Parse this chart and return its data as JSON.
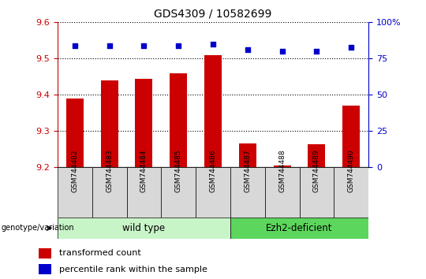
{
  "title": "GDS4309 / 10582699",
  "samples": [
    "GSM744482",
    "GSM744483",
    "GSM744484",
    "GSM744485",
    "GSM744486",
    "GSM744487",
    "GSM744488",
    "GSM744489",
    "GSM744490"
  ],
  "transformed_counts": [
    9.39,
    9.44,
    9.445,
    9.46,
    9.51,
    9.265,
    9.205,
    9.263,
    9.37
  ],
  "percentile_ranks": [
    84,
    84,
    84,
    84,
    85,
    81,
    80,
    80,
    83
  ],
  "ylim_left": [
    9.2,
    9.6
  ],
  "ylim_right": [
    0,
    100
  ],
  "yticks_left": [
    9.2,
    9.3,
    9.4,
    9.5,
    9.6
  ],
  "yticks_right": [
    0,
    25,
    50,
    75,
    100
  ],
  "bar_color": "#cc0000",
  "scatter_color": "#0000cc",
  "n_wild_type": 5,
  "wild_type_label": "wild type",
  "ezh2_label": "Ezh2-deficient",
  "genotype_label": "genotype/variation",
  "legend_bar_label": "transformed count",
  "legend_scatter_label": "percentile rank within the sample",
  "wild_type_color": "#c8f5c8",
  "ezh2_color": "#5cd65c",
  "right_axis_color": "#0000cc",
  "bar_width": 0.5,
  "tick_label_color_left": "#cc0000",
  "tick_label_color_right": "#0000cc",
  "xtick_bg_color": "#d8d8d8",
  "grid_color": "#000000"
}
